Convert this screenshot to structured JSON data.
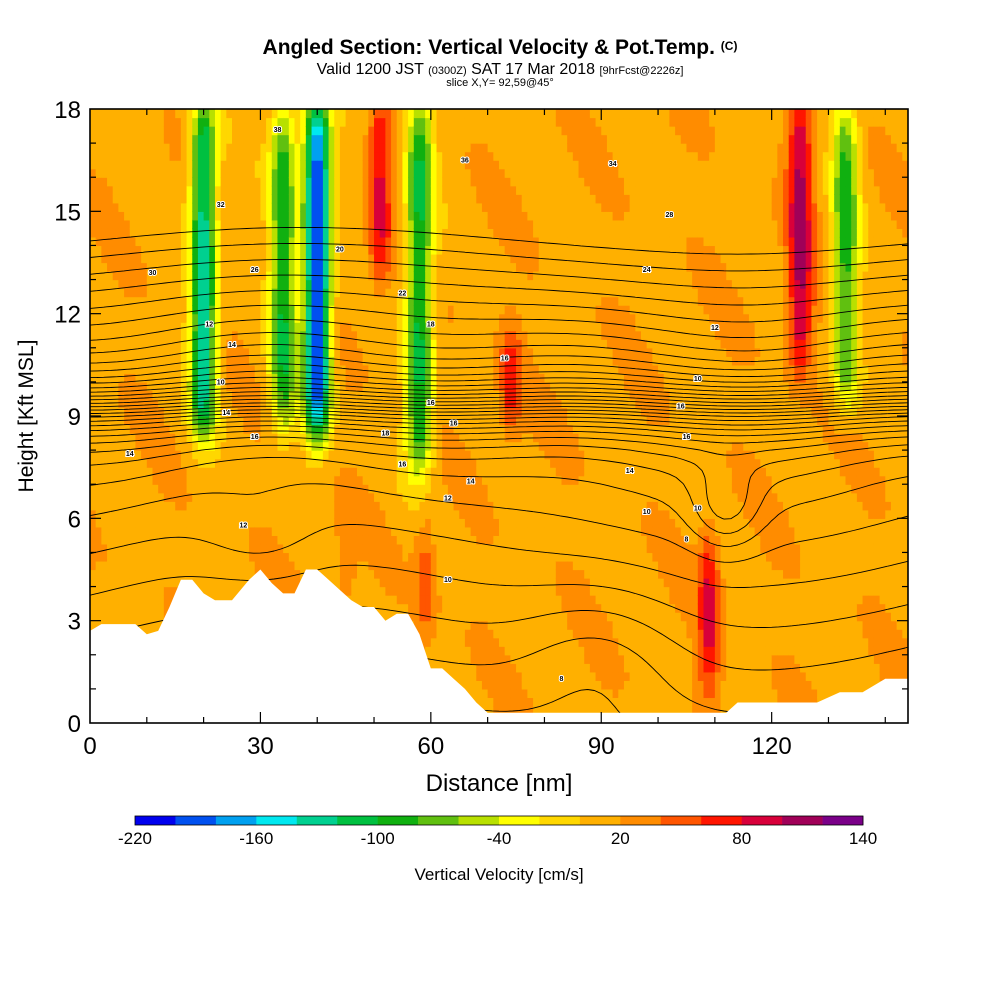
{
  "header": {
    "title_main": "Angled Section: Vertical Velocity & Pot.Temp.",
    "title_suffix": "(C)",
    "valid_a": "Valid 1200 JST",
    "valid_b": "(0300Z)",
    "valid_c": "SAT 17 Mar 2018",
    "valid_d": "[9hrFcst@2226z]",
    "slice": "slice X,Y= 92,59@45°"
  },
  "chart_data": {
    "type": "heatmap",
    "xlabel": "Distance [nm]",
    "ylabel": "Height [Kft MSL]",
    "xlim": [
      0,
      144
    ],
    "ylim": [
      0,
      18
    ],
    "x_ticks": [
      0,
      30,
      60,
      90,
      120
    ],
    "y_ticks": [
      0,
      3,
      6,
      9,
      12,
      15,
      18
    ],
    "colorbar": {
      "label": "Vertical Velocity [cm/s]",
      "min": -220,
      "max": 140,
      "step": 20,
      "tick_labels": [
        "-220",
        "-160",
        "-100",
        "-40",
        "20",
        "80",
        "140"
      ],
      "colors": [
        "#0000ee",
        "#0050f0",
        "#00a0f0",
        "#00e8f0",
        "#00d090",
        "#00c040",
        "#10b010",
        "#60c010",
        "#b8e000",
        "#ffff00",
        "#ffd700",
        "#ffb000",
        "#ff8c00",
        "#ff5500",
        "#ff1500",
        "#d8003a",
        "#a00058",
        "#7a0088"
      ]
    },
    "velocity_features": [
      {
        "x": 20,
        "z_bottom": 8.6,
        "z_top": 18,
        "w": -150
      },
      {
        "x": 34,
        "z_bottom": 8.8,
        "z_top": 18,
        "w": -110
      },
      {
        "x": 40,
        "z_bottom": 8.6,
        "z_top": 18,
        "w": -220
      },
      {
        "x": 51,
        "z_bottom": 13.0,
        "z_top": 18,
        "w": 70
      },
      {
        "x": 58,
        "z_bottom": 7.5,
        "z_top": 18,
        "w": -120
      },
      {
        "x": 74,
        "z_bottom": 8.5,
        "z_top": 11.5,
        "w": 60
      },
      {
        "x": 109,
        "z_bottom": 1.0,
        "z_top": 5.5,
        "w": 70
      },
      {
        "x": 125,
        "z_bottom": 10.5,
        "z_top": 18,
        "w": 90
      },
      {
        "x": 133,
        "z_bottom": 9.5,
        "z_top": 18,
        "w": -100
      },
      {
        "x": 45,
        "z_bottom": 3.5,
        "z_top": 6,
        "w": 30
      },
      {
        "x": 59,
        "z_bottom": 2.5,
        "z_top": 6,
        "w": 40
      }
    ],
    "terrain_profile": {
      "x": [
        0,
        2,
        8,
        10,
        12,
        14,
        16,
        18,
        20,
        22,
        25,
        28,
        30,
        32,
        34,
        36,
        38,
        40,
        42,
        44,
        46,
        48,
        50,
        52,
        54,
        56,
        58,
        60,
        62,
        64,
        66,
        68,
        70,
        80,
        90,
        100,
        106,
        112,
        114,
        118,
        120,
        124,
        128,
        132,
        136,
        140,
        144
      ],
      "z": [
        2.7,
        2.9,
        2.9,
        2.6,
        2.7,
        3.4,
        4.2,
        4.2,
        3.8,
        3.6,
        3.6,
        4.2,
        4.5,
        4.1,
        3.8,
        3.8,
        4.5,
        4.5,
        4.2,
        3.9,
        3.6,
        3.4,
        3.4,
        3.0,
        3.2,
        3.2,
        2.6,
        1.6,
        1.6,
        1.3,
        1.0,
        0.6,
        0.3,
        0.3,
        0.3,
        0.3,
        0.3,
        0.3,
        0.6,
        0.6,
        0.6,
        0.6,
        0.6,
        0.9,
        0.9,
        1.3,
        1.3
      ]
    },
    "theta_contours": {
      "min": -4,
      "max": 38,
      "step": 1,
      "unit": "C"
    },
    "contour_labels": [
      {
        "x": 33,
        "z": 17.4,
        "text": "38"
      },
      {
        "x": 66,
        "z": 16.5,
        "text": "36"
      },
      {
        "x": 92,
        "z": 16.4,
        "text": "34"
      },
      {
        "x": 23,
        "z": 15.2,
        "text": "32"
      },
      {
        "x": 102,
        "z": 14.9,
        "text": "28"
      },
      {
        "x": 11,
        "z": 13.2,
        "text": "30"
      },
      {
        "x": 29,
        "z": 13.3,
        "text": "26"
      },
      {
        "x": 44,
        "z": 13.9,
        "text": "20"
      },
      {
        "x": 98,
        "z": 13.3,
        "text": "24"
      },
      {
        "x": 55,
        "z": 12.6,
        "text": "22"
      },
      {
        "x": 21,
        "z": 11.7,
        "text": "12"
      },
      {
        "x": 60,
        "z": 11.7,
        "text": "18"
      },
      {
        "x": 110,
        "z": 11.6,
        "text": "12"
      },
      {
        "x": 25,
        "z": 11.1,
        "text": "14"
      },
      {
        "x": 73,
        "z": 10.7,
        "text": "16"
      },
      {
        "x": 23,
        "z": 10.0,
        "text": "10"
      },
      {
        "x": 107,
        "z": 10.1,
        "text": "10"
      },
      {
        "x": 60,
        "z": 9.4,
        "text": "16"
      },
      {
        "x": 24,
        "z": 9.1,
        "text": "14"
      },
      {
        "x": 104,
        "z": 9.3,
        "text": "16"
      },
      {
        "x": 64,
        "z": 8.8,
        "text": "16"
      },
      {
        "x": 29,
        "z": 8.4,
        "text": "16"
      },
      {
        "x": 52,
        "z": 8.5,
        "text": "18"
      },
      {
        "x": 105,
        "z": 8.4,
        "text": "16"
      },
      {
        "x": 7,
        "z": 7.9,
        "text": "14"
      },
      {
        "x": 55,
        "z": 7.6,
        "text": "16"
      },
      {
        "x": 95,
        "z": 7.4,
        "text": "14"
      },
      {
        "x": 67,
        "z": 7.1,
        "text": "14"
      },
      {
        "x": 63,
        "z": 6.6,
        "text": "12"
      },
      {
        "x": 98,
        "z": 6.2,
        "text": "10"
      },
      {
        "x": 107,
        "z": 6.3,
        "text": "10"
      },
      {
        "x": 27,
        "z": 5.8,
        "text": "12"
      },
      {
        "x": 105,
        "z": 5.4,
        "text": "8"
      },
      {
        "x": 63,
        "z": 4.2,
        "text": "10"
      },
      {
        "x": 83,
        "z": 1.3,
        "text": "8"
      }
    ]
  }
}
